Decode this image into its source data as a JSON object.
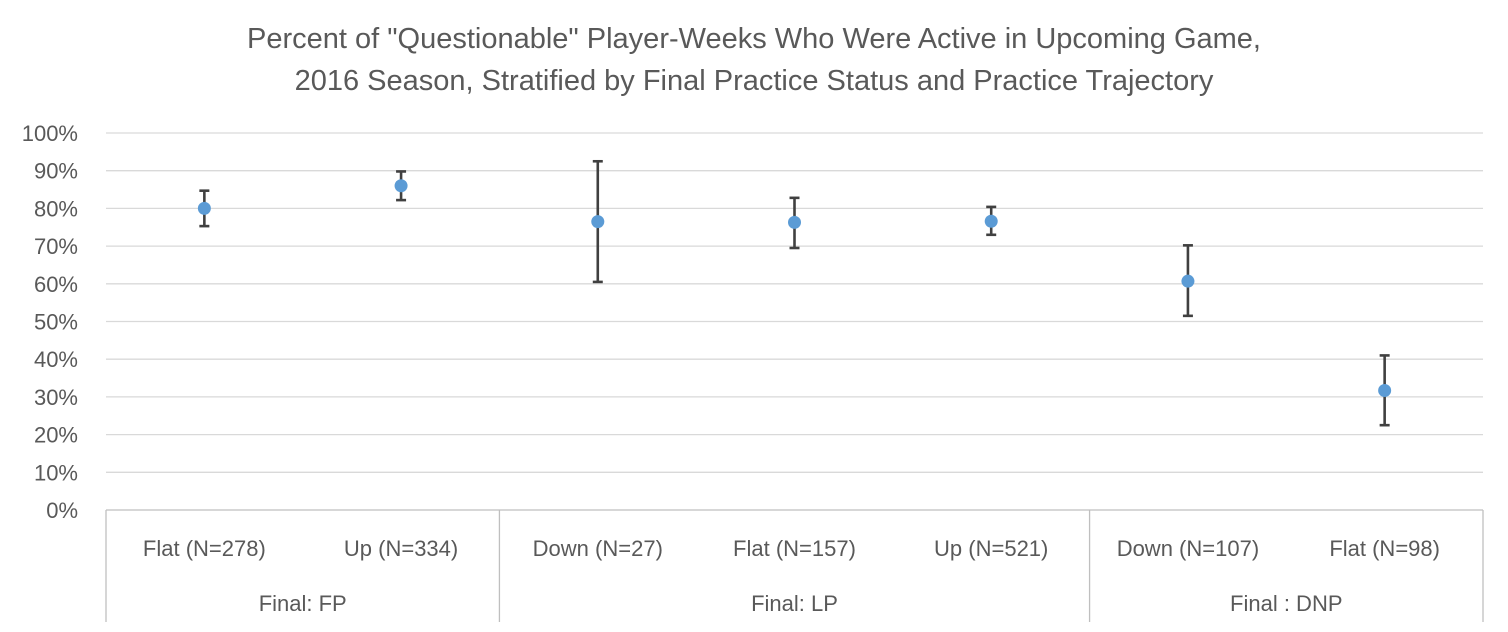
{
  "chart_data": {
    "type": "scatter",
    "title": "Percent of \"Questionable\" Player-Weeks Who Were Active in Upcoming Game,",
    "subtitle": "2016 Season, Stratified by Final Practice Status and Practice Trajectory",
    "xlabel": "",
    "ylabel": "",
    "ylim": [
      0,
      1
    ],
    "yticks": [
      "0%",
      "10%",
      "20%",
      "30%",
      "40%",
      "50%",
      "60%",
      "70%",
      "80%",
      "90%",
      "100%"
    ],
    "grid": true,
    "legend": "none",
    "marker_color": "#5b9bd5",
    "error_bar_color": "#404040",
    "groups": [
      {
        "label": "Final: FP",
        "count": 2
      },
      {
        "label": "Final: LP",
        "count": 3
      },
      {
        "label": "Final : DNP",
        "count": 2
      }
    ],
    "categories": [
      "Flat (N=278)",
      "Up (N=334)",
      "Down (N=27)",
      "Flat (N=157)",
      "Up (N=521)",
      "Down (N=107)",
      "Flat (N=98)"
    ],
    "values": [
      0.8,
      0.86,
      0.765,
      0.763,
      0.766,
      0.607,
      0.317
    ],
    "error_low": [
      0.753,
      0.822,
      0.605,
      0.695,
      0.73,
      0.515,
      0.225
    ],
    "error_high": [
      0.847,
      0.898,
      0.925,
      0.828,
      0.804,
      0.702,
      0.41
    ]
  }
}
